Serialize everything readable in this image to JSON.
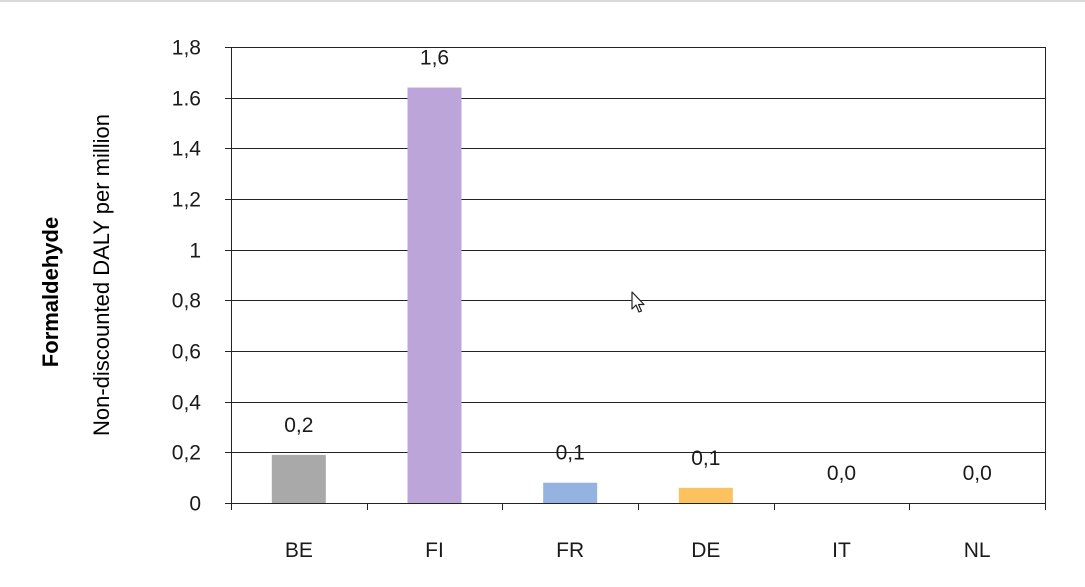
{
  "chart_data": {
    "type": "bar",
    "title": "",
    "ylabel_group": "Formaldehyde",
    "ylabel": "Non-discounted DALY per million",
    "xlabel": "",
    "categories": [
      "BE",
      "FI",
      "FR",
      "DE",
      "IT",
      "NL"
    ],
    "values": [
      0.19,
      1.64,
      0.08,
      0.06,
      0.0,
      0.0
    ],
    "data_labels": [
      "0,2",
      "1,6",
      "0,1",
      "0,1",
      "0,0",
      "0,0"
    ],
    "colors": [
      "#a9a9a9",
      "#bca6d9",
      "#94b3e0",
      "#fbc25f",
      "#a9a9a9",
      "#a9a9a9"
    ],
    "ylim": [
      0,
      1.8
    ],
    "yticks": [
      0,
      0.2,
      0.4,
      0.6,
      0.8,
      1,
      1.2,
      1.4,
      1.6,
      1.8
    ],
    "ytick_labels": [
      "0",
      "0,2",
      "0,4",
      "0,6",
      "0,8",
      "1",
      "1,2",
      "1,4",
      "1.6",
      "1,8"
    ],
    "grid": true,
    "legend": "none"
  }
}
